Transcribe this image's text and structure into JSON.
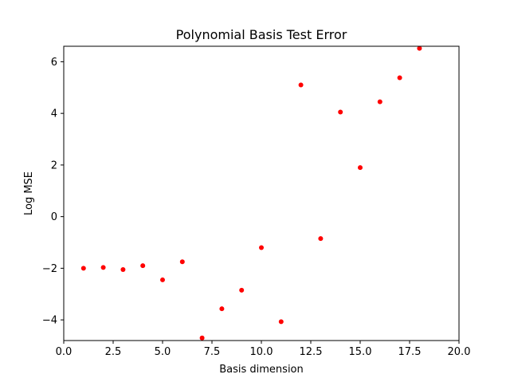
{
  "chart_data": {
    "type": "scatter",
    "title": "Polynomial Basis Test Error",
    "xlabel": "Basis dimension",
    "ylabel": "Log MSE",
    "xlim": [
      0,
      20
    ],
    "ylim": [
      -4.8,
      6.6
    ],
    "xticks": [
      0,
      2.5,
      5,
      7.5,
      10,
      12.5,
      15,
      17.5,
      20
    ],
    "xtick_labels": [
      "0.0",
      "2.5",
      "5.0",
      "7.5",
      "10.0",
      "12.5",
      "15.0",
      "17.5",
      "20.0"
    ],
    "yticks": [
      -4,
      -2,
      0,
      2,
      4,
      6
    ],
    "ytick_labels": [
      "−4",
      "−2",
      "0",
      "2",
      "4",
      "6"
    ],
    "grid": false,
    "series": [
      {
        "color": "#ff0000",
        "points": [
          {
            "x": 1,
            "y": -2.0
          },
          {
            "x": 2,
            "y": -1.97
          },
          {
            "x": 3,
            "y": -2.05
          },
          {
            "x": 4,
            "y": -1.9
          },
          {
            "x": 5,
            "y": -2.45
          },
          {
            "x": 6,
            "y": -1.75
          },
          {
            "x": 7,
            "y": -4.7
          },
          {
            "x": 8,
            "y": -3.57
          },
          {
            "x": 9,
            "y": -2.85
          },
          {
            "x": 10,
            "y": -1.2
          },
          {
            "x": 11,
            "y": -4.07
          },
          {
            "x": 12,
            "y": 5.1
          },
          {
            "x": 13,
            "y": -0.85
          },
          {
            "x": 14,
            "y": 4.05
          },
          {
            "x": 15,
            "y": 1.9
          },
          {
            "x": 16,
            "y": 4.45
          },
          {
            "x": 17,
            "y": 5.38
          },
          {
            "x": 18,
            "y": 6.52
          }
        ]
      }
    ]
  }
}
